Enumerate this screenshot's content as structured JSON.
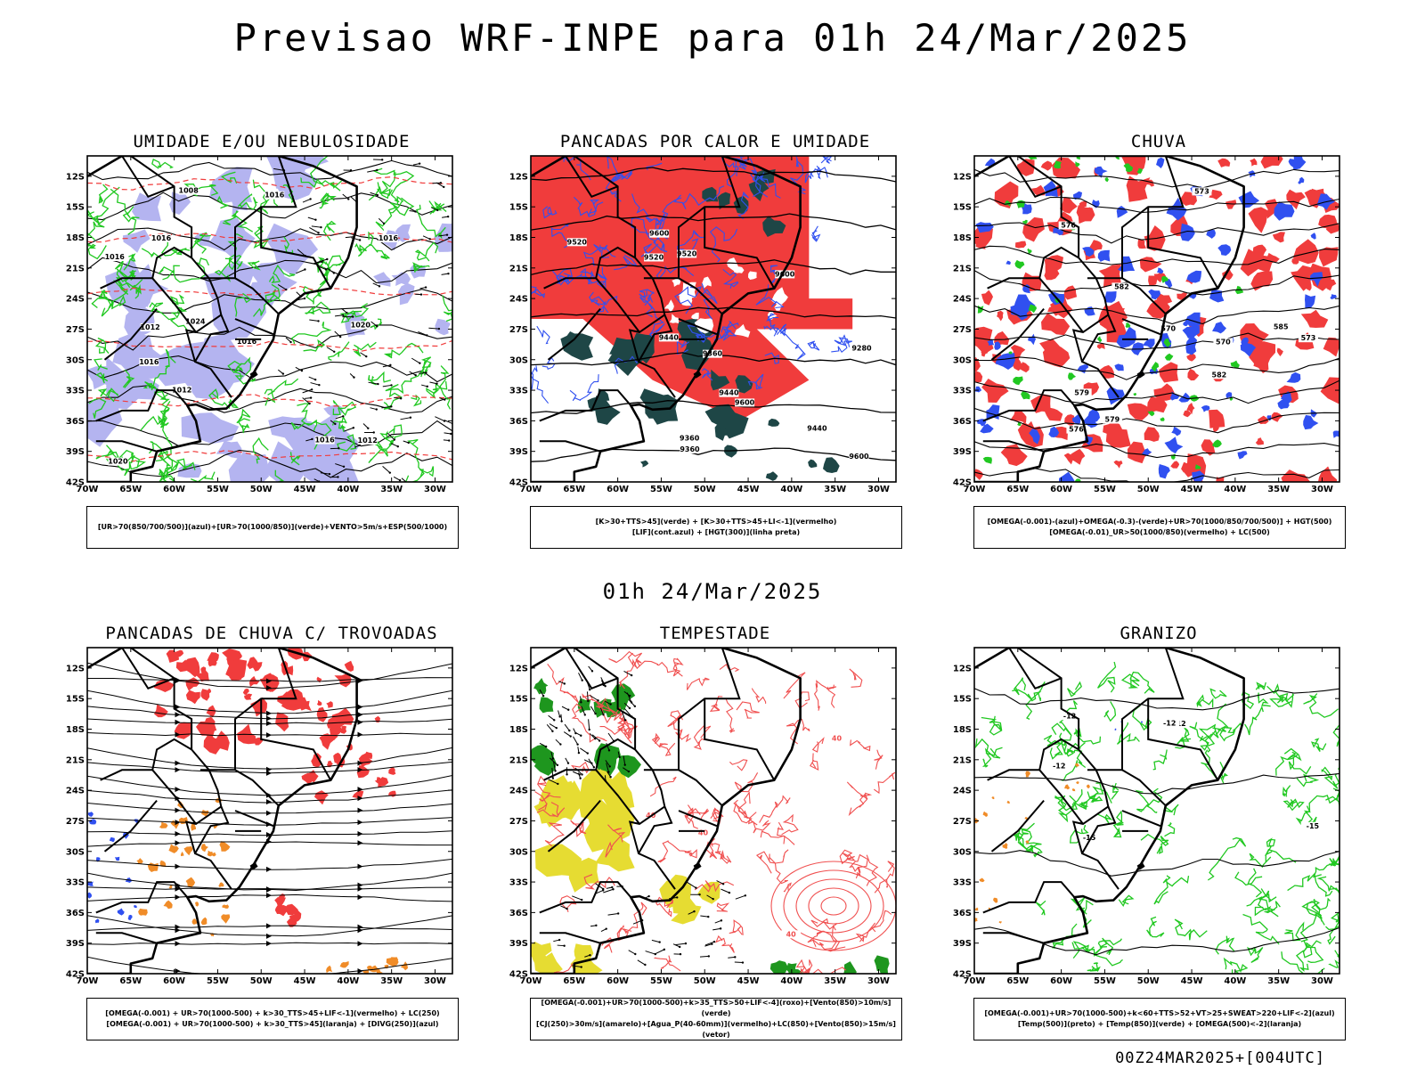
{
  "header": {
    "title": "Previsao WRF-INPE  para 01h 24/Mar/2025",
    "mid_title": "01h 24/Mar/2025",
    "footer": "00Z24MAR2025+[004UTC]"
  },
  "colors": {
    "red": "#f03c3c",
    "green": "#21c821",
    "blue": "#3050f0",
    "lavender": "#b4b4f0",
    "dark_teal": "#1e4646",
    "yellow": "#e6dc32",
    "orange": "#f08c28",
    "dark_green": "#1e961e",
    "line_red": "#f05050"
  },
  "chart_data": [
    {
      "type": "heatmap",
      "title": "UMIDADE E/OU NEBULOSIDADE",
      "legend": [
        "[UR>70(850/700/500)](azul)+[UR>70(1000/850)](verde)+VENTO>5m/s+ESP(500/1000)"
      ],
      "x_ticks": [
        "70W",
        "65W",
        "60W",
        "55W",
        "50W",
        "45W",
        "40W",
        "35W",
        "30W"
      ],
      "y_ticks": [
        "12S",
        "15S",
        "18S",
        "21S",
        "24S",
        "27S",
        "30S",
        "33S",
        "36S",
        "39S",
        "42S"
      ],
      "xlim": [
        -70,
        -28
      ],
      "ylim": [
        -42,
        -10
      ],
      "contour_labels": [
        "1012",
        "1012",
        "1016",
        "1012",
        "1016",
        "1016",
        "1016",
        "1016",
        "1020",
        "1024",
        "1016",
        "1016",
        "1020",
        "1008"
      ]
    },
    {
      "type": "heatmap",
      "title": "PANCADAS POR CALOR E UMIDADE",
      "legend": [
        "[K>30+TTS>45](verde) + [K>30+TTS>45+LI<-1](vermelho)",
        "[LIF](cont.azul) + [HGT(300)](linha preta)"
      ],
      "x_ticks": [
        "70W",
        "65W",
        "60W",
        "55W",
        "50W",
        "45W",
        "40W",
        "35W",
        "30W"
      ],
      "y_ticks": [
        "12S",
        "15S",
        "18S",
        "21S",
        "24S",
        "27S",
        "30S",
        "33S",
        "36S",
        "39S",
        "42S"
      ],
      "xlim": [
        -70,
        -28
      ],
      "ylim": [
        -42,
        -10
      ],
      "contour_labels": [
        "9600",
        "9520",
        "9440",
        "9600",
        "9600",
        "9520",
        "9440",
        "9520",
        "9440",
        "9360",
        "9360",
        "9280",
        "9600",
        "9360"
      ]
    },
    {
      "type": "heatmap",
      "title": "CHUVA",
      "legend": [
        "[OMEGA(-0.001)-(azul)+OMEGA(-0.3)-(verde)+UR>70(1000/850/700/500)] + HGT(500)",
        "[OMEGA(-0.01)_UR>50(1000/850)(vermelho) + LC(500)"
      ],
      "x_ticks": [
        "70W",
        "65W",
        "60W",
        "55W",
        "50W",
        "45W",
        "40W",
        "35W",
        "30W"
      ],
      "y_ticks": [
        "12S",
        "15S",
        "18S",
        "21S",
        "24S",
        "27S",
        "30S",
        "33S",
        "36S",
        "39S",
        "42S"
      ],
      "xlim": [
        -70,
        -28
      ],
      "ylim": [
        -42,
        -10
      ],
      "contour_labels": [
        "585",
        "582",
        "579",
        "576",
        "573",
        "570",
        "570",
        "573",
        "576",
        "579",
        "582"
      ]
    },
    {
      "type": "heatmap",
      "title": "PANCADAS DE CHUVA C/ TROVOADAS",
      "legend": [
        "[OMEGA(-0.001) + UR>70(1000-500) + k>30_TTS>45+LIF<-1](vermelho) + LC(250)",
        "[OMEGA(-0.001) + UR>70(1000-500) + k>30_TTS>45](laranja) + [DIVG(250)](azul)"
      ],
      "x_ticks": [
        "70W",
        "65W",
        "60W",
        "55W",
        "50W",
        "45W",
        "40W",
        "35W",
        "30W"
      ],
      "y_ticks": [
        "12S",
        "15S",
        "18S",
        "21S",
        "24S",
        "27S",
        "30S",
        "33S",
        "36S",
        "39S",
        "42S"
      ],
      "xlim": [
        -70,
        -28
      ],
      "ylim": [
        -42,
        -10
      ]
    },
    {
      "type": "heatmap",
      "title": "TEMPESTADE",
      "legend": [
        "[OMEGA(-0.001)+UR>70(1000-500)+k>35_TTS>50+LIF<-4](roxo)+[Vento(850)>10m/s](verde)",
        "[CJ(250)>30m/s](amarelo)+[Agua_P(40-60mm)](vermelho)+LC(850)+[Vento(850)>15m/s](vetor)"
      ],
      "x_ticks": [
        "70W",
        "65W",
        "60W",
        "55W",
        "50W",
        "45W",
        "40W",
        "35W",
        "30W"
      ],
      "y_ticks": [
        "12S",
        "15S",
        "18S",
        "21S",
        "24S",
        "27S",
        "30S",
        "33S",
        "36S",
        "39S",
        "42S"
      ],
      "xlim": [
        -70,
        -28
      ],
      "ylim": [
        -42,
        -10
      ],
      "contour_labels": [
        "40",
        "40",
        "40",
        "40"
      ]
    },
    {
      "type": "heatmap",
      "title": "GRANIZO",
      "legend": [
        "[OMEGA(-0.001)+UR>70(1000-500)+k<60+TTS>52+VT>25+SWEAT>220+LIF<-2](azul)",
        "[Temp(500)](preto) + [Temp(850)](verde) + [OMEGA(500)<-2](laranja)"
      ],
      "x_ticks": [
        "70W",
        "65W",
        "60W",
        "55W",
        "50W",
        "45W",
        "40W",
        "35W",
        "30W"
      ],
      "y_ticks": [
        "12S",
        "15S",
        "18S",
        "21S",
        "24S",
        "27S",
        "30S",
        "33S",
        "36S",
        "39S",
        "42S"
      ],
      "xlim": [
        -70,
        -28
      ],
      "ylim": [
        -42,
        -10
      ],
      "contour_labels": [
        "-12",
        "-12",
        "-15",
        "-12",
        "-15",
        "-12"
      ]
    }
  ]
}
